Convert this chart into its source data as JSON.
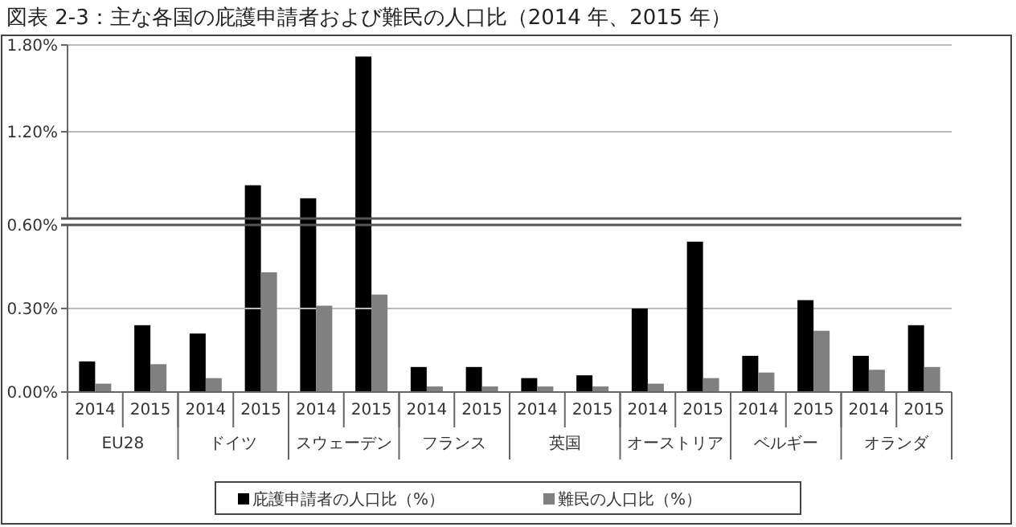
{
  "chart_data": [
    {
      "type": "bar",
      "title": "図表 2-3：主な各国の庇護申請者および難民の人口比（2014 年、2015 年）",
      "categories": [
        "2014",
        "2015",
        "2014",
        "2015",
        "2014",
        "2015",
        "2014",
        "2015",
        "2014",
        "2015",
        "2014",
        "2015",
        "2014",
        "2015",
        "2014",
        "2015"
      ],
      "series": [
        {
          "color": "#000000",
          "values": [
            null,
            null,
            null,
            0.83,
            0.74,
            1.72,
            null,
            null,
            null,
            null,
            null,
            null,
            null,
            null,
            null,
            null
          ]
        }
      ],
      "ylim": [
        0.6,
        1.8
      ],
      "yticks": [
        {
          "value": 1.2,
          "label": "1.20%"
        },
        {
          "value": 1.8,
          "label": "1.80%"
        }
      ],
      "grid": "y",
      "tick_labels": "y"
    },
    {
      "type": "bar",
      "categories": [
        "2014",
        "2015",
        "2014",
        "2015",
        "2014",
        "2015",
        "2014",
        "2015",
        "2014",
        "2015",
        "2014",
        "2015",
        "2014",
        "2015",
        "2014",
        "2015"
      ],
      "annotations": [
        "EU28",
        "ドイツ",
        "スウェーデン",
        "フランス",
        "英国",
        "オーストリア",
        "ベルギー",
        "オランダ"
      ],
      "series": [
        {
          "name": "庇護申請者の人口比（%）",
          "color": "#000000",
          "values": [
            0.11,
            0.24,
            0.21,
            null,
            null,
            null,
            0.09,
            0.09,
            0.05,
            0.06,
            0.3,
            0.54,
            0.13,
            0.33,
            0.13,
            0.24
          ]
        },
        {
          "name": "難民の人口比（%）",
          "color": "#808080",
          "values": [
            0.03,
            0.1,
            0.05,
            0.43,
            0.31,
            0.35,
            0.02,
            0.02,
            0.02,
            0.02,
            0.03,
            0.05,
            0.07,
            0.22,
            0.08,
            0.09
          ]
        }
      ],
      "ylim": [
        0,
        0.6
      ],
      "yticks": [
        {
          "value": 0,
          "label": "0.00%"
        },
        {
          "value": 0.3,
          "label": "0.30%"
        },
        {
          "value": 0.6,
          "label": "0.60%"
        }
      ],
      "grid": "y",
      "legend": "bottom"
    }
  ]
}
